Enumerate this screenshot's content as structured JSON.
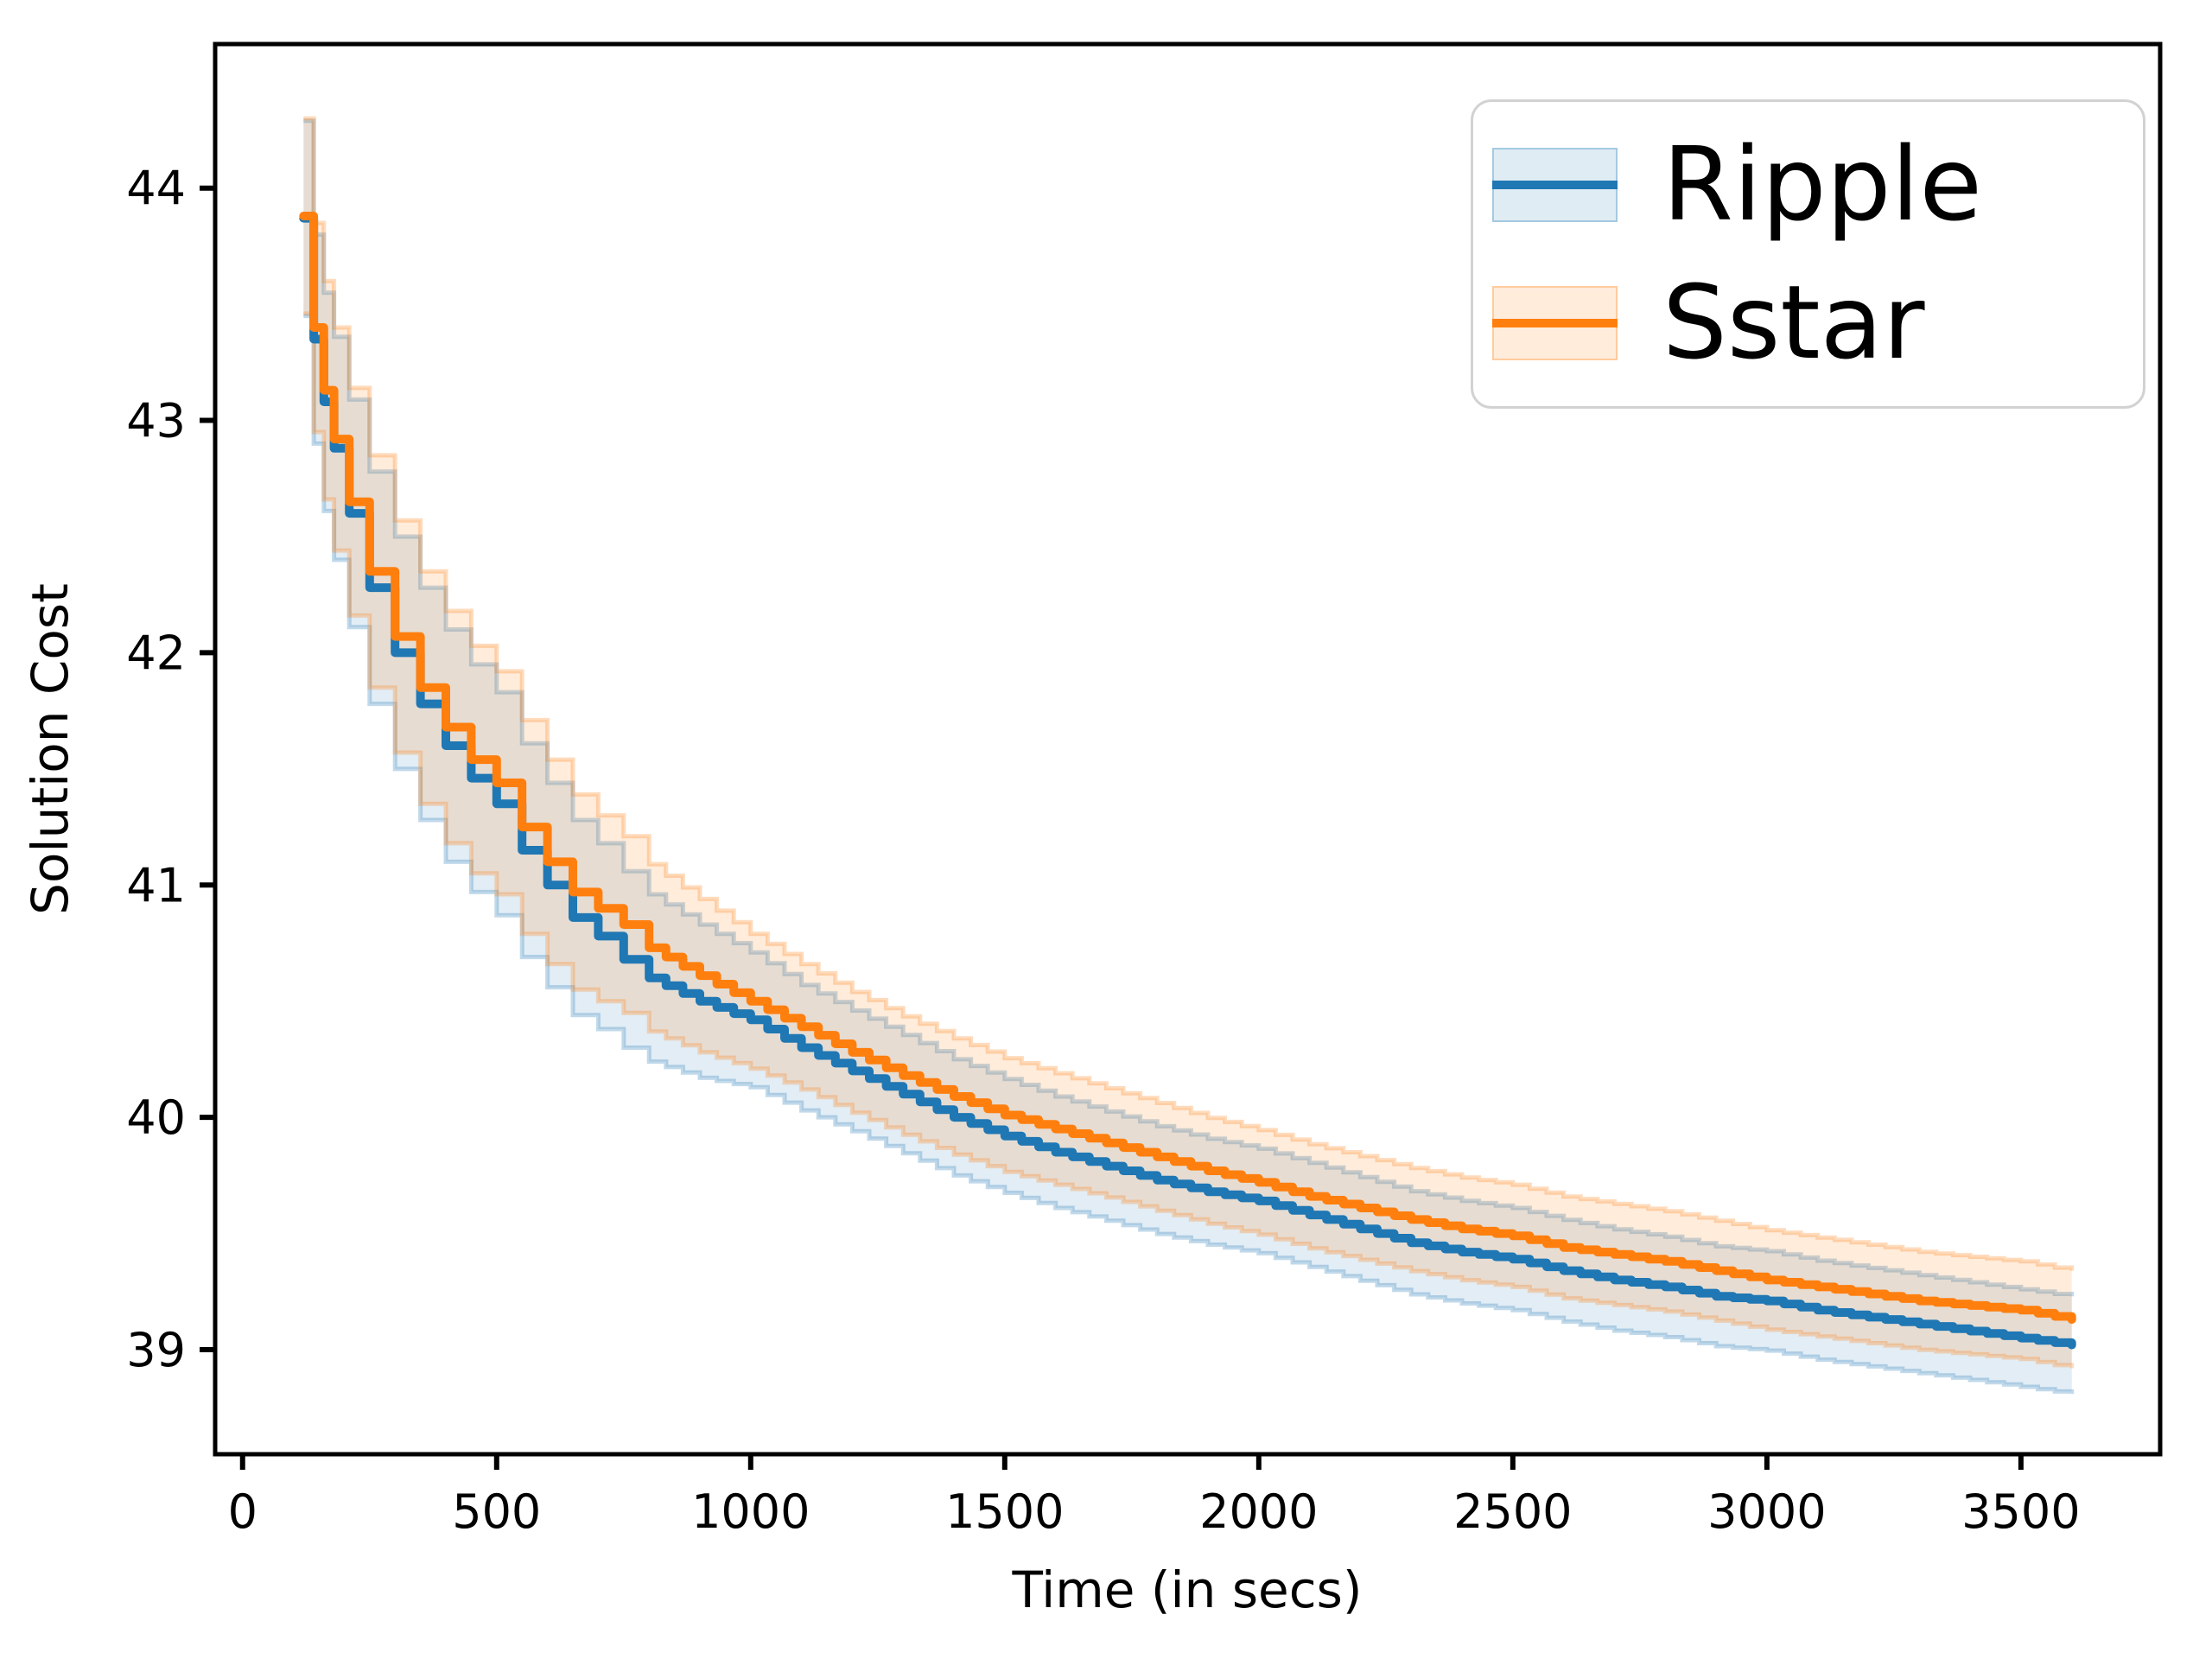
{
  "figure": {
    "background": "#ffffff"
  },
  "chart_data": {
    "type": "line",
    "title": "",
    "xlabel": "Time (in secs)",
    "ylabel": "Solution Cost",
    "xlim": [
      -54,
      3774
    ],
    "ylim": [
      38.55,
      44.62
    ],
    "xticks": [
      0,
      500,
      1000,
      1500,
      2000,
      2500,
      3000,
      3500
    ],
    "yticks": [
      39,
      40,
      41,
      42,
      43,
      44
    ],
    "grid": false,
    "legend": {
      "position": "upper right",
      "entries": [
        "Ripple",
        "Sstar"
      ]
    },
    "x": [
      120,
      140,
      160,
      180,
      210,
      250,
      300,
      350,
      400,
      450,
      500,
      550,
      600,
      650,
      700,
      750,
      800,
      900,
      1000,
      1100,
      1200,
      1300,
      1400,
      1500,
      1600,
      1700,
      1800,
      1900,
      2000,
      2100,
      2200,
      2300,
      2400,
      2500,
      2600,
      2700,
      2800,
      2900,
      3000,
      3100,
      3200,
      3300,
      3400,
      3500,
      3600
    ],
    "series": [
      {
        "name": "Ripple",
        "color": "#1f77b4",
        "band_fill_opacity": 0.13,
        "values": [
          43.87,
          43.35,
          43.08,
          42.88,
          42.6,
          42.28,
          42.0,
          41.78,
          41.6,
          41.46,
          41.35,
          41.15,
          41.0,
          40.86,
          40.78,
          40.68,
          40.6,
          40.5,
          40.42,
          40.3,
          40.2,
          40.1,
          40.0,
          39.92,
          39.85,
          39.79,
          39.73,
          39.68,
          39.64,
          39.58,
          39.52,
          39.46,
          39.42,
          39.39,
          39.34,
          39.3,
          39.27,
          39.23,
          39.21,
          39.17,
          39.14,
          39.11,
          39.08,
          39.05,
          39.02
        ],
        "ci_halfwidth": [
          0.42,
          0.45,
          0.47,
          0.48,
          0.49,
          0.5,
          0.5,
          0.5,
          0.5,
          0.49,
          0.48,
          0.46,
          0.44,
          0.42,
          0.4,
          0.38,
          0.36,
          0.33,
          0.29,
          0.27,
          0.26,
          0.255,
          0.25,
          0.245,
          0.24,
          0.235,
          0.232,
          0.228,
          0.225,
          0.224,
          0.223,
          0.222,
          0.221,
          0.22,
          0.219,
          0.218,
          0.216,
          0.215,
          0.214,
          0.213,
          0.212,
          0.211,
          0.21,
          0.21,
          0.21
        ]
      },
      {
        "name": "Sstar",
        "color": "#ff7f0e",
        "band_fill_opacity": 0.15,
        "values": [
          43.88,
          43.4,
          43.13,
          42.92,
          42.65,
          42.35,
          42.07,
          41.85,
          41.68,
          41.54,
          41.44,
          41.25,
          41.1,
          40.97,
          40.9,
          40.83,
          40.73,
          40.61,
          40.5,
          40.39,
          40.28,
          40.18,
          40.09,
          40.01,
          39.95,
          39.89,
          39.83,
          39.77,
          39.72,
          39.66,
          39.61,
          39.56,
          39.52,
          39.49,
          39.44,
          39.41,
          39.38,
          39.34,
          39.3,
          39.27,
          39.24,
          39.21,
          39.19,
          39.17,
          39.13
        ],
        "ci_halfwidth": [
          0.42,
          0.45,
          0.47,
          0.48,
          0.49,
          0.5,
          0.5,
          0.5,
          0.5,
          0.49,
          0.48,
          0.46,
          0.44,
          0.42,
          0.4,
          0.38,
          0.36,
          0.33,
          0.29,
          0.27,
          0.26,
          0.255,
          0.25,
          0.245,
          0.24,
          0.235,
          0.232,
          0.228,
          0.225,
          0.224,
          0.223,
          0.222,
          0.221,
          0.22,
          0.219,
          0.218,
          0.216,
          0.215,
          0.214,
          0.213,
          0.212,
          0.211,
          0.21,
          0.21,
          0.21
        ]
      }
    ]
  }
}
